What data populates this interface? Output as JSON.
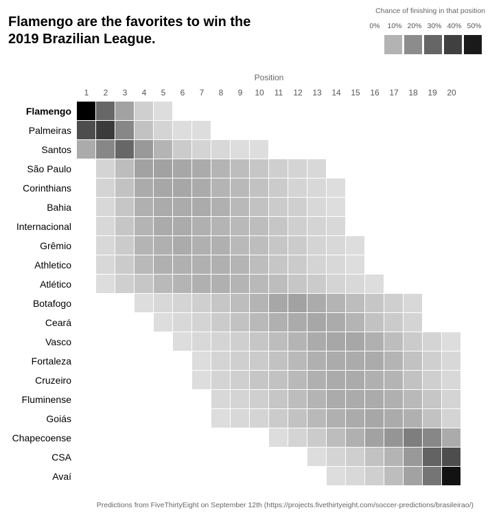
{
  "title": "Flamengo are the favorites to win the 2019 Brazilian League.",
  "legend": {
    "title": "Chance of finishing in that position",
    "labels": [
      "0%",
      "10%",
      "20%",
      "30%",
      "40%",
      "50%"
    ],
    "colors": [
      "#b3b3b3",
      "#8c8c8c",
      "#666666",
      "#404040",
      "#1a1a1a"
    ]
  },
  "footer": "Predictions from FiveThirtyEight on September 12th (https://projects.fivethirtyeight.com/soccer-predictions/brasileirao/)",
  "chart_data": {
    "type": "heatmap",
    "xlabel": "Position",
    "x": [
      "1",
      "2",
      "3",
      "4",
      "5",
      "6",
      "7",
      "8",
      "9",
      "10",
      "11",
      "12",
      "13",
      "14",
      "15",
      "16",
      "17",
      "18",
      "19",
      "20"
    ],
    "y": [
      "Flamengo",
      "Palmeiras",
      "Santos",
      "São Paulo",
      "Corinthians",
      "Bahia",
      "Internacional",
      "Grêmio",
      "Athletico",
      "Atlético",
      "Botafogo",
      "Ceará",
      "Vasco",
      "Fortaleza",
      "Cruzeiro",
      "Fluminense",
      "Goiás",
      "Chapecoense",
      "CSA",
      "Avaí"
    ],
    "highlighted_team": "Flamengo",
    "value_unit": "chance of finishing in that position (%)",
    "scale": [
      0,
      50
    ],
    "values": [
      [
        55,
        27,
        14,
        4,
        1,
        0,
        0,
        0,
        0,
        0,
        0,
        0,
        0,
        0,
        0,
        0,
        0,
        0,
        0,
        0
      ],
      [
        33,
        37,
        20,
        7,
        3,
        1,
        1,
        0,
        0,
        0,
        0,
        0,
        0,
        0,
        0,
        0,
        0,
        0,
        0,
        0
      ],
      [
        12,
        20,
        27,
        16,
        10,
        5,
        3,
        2,
        1,
        1,
        0,
        0,
        0,
        0,
        0,
        0,
        0,
        0,
        0,
        0
      ],
      [
        0,
        3,
        8,
        14,
        14,
        13,
        12,
        10,
        8,
        6,
        4,
        3,
        2,
        0,
        0,
        0,
        0,
        0,
        0,
        0
      ],
      [
        0,
        3,
        7,
        12,
        13,
        13,
        12,
        10,
        9,
        7,
        5,
        3,
        2,
        1,
        0,
        0,
        0,
        0,
        0,
        0
      ],
      [
        0,
        2,
        6,
        11,
        12,
        12,
        12,
        11,
        9,
        7,
        5,
        4,
        2,
        1,
        0,
        0,
        0,
        0,
        0,
        0
      ],
      [
        0,
        2,
        6,
        10,
        12,
        12,
        11,
        10,
        9,
        8,
        6,
        4,
        3,
        2,
        0,
        0,
        0,
        0,
        0,
        0
      ],
      [
        0,
        2,
        5,
        10,
        11,
        12,
        11,
        11,
        9,
        8,
        6,
        5,
        3,
        2,
        1,
        0,
        0,
        0,
        0,
        0
      ],
      [
        0,
        2,
        5,
        9,
        11,
        11,
        11,
        11,
        10,
        8,
        6,
        5,
        3,
        2,
        1,
        0,
        0,
        0,
        0,
        0
      ],
      [
        0,
        1,
        4,
        6,
        9,
        10,
        11,
        11,
        10,
        9,
        8,
        6,
        5,
        3,
        2,
        1,
        0,
        0,
        0,
        0
      ],
      [
        0,
        0,
        0,
        1,
        2,
        3,
        4,
        6,
        8,
        10,
        13,
        14,
        12,
        10,
        8,
        6,
        4,
        2,
        0,
        0
      ],
      [
        0,
        0,
        0,
        0,
        1,
        2,
        3,
        5,
        7,
        9,
        11,
        12,
        13,
        12,
        10,
        7,
        5,
        3,
        0,
        0
      ],
      [
        0,
        0,
        0,
        0,
        0,
        1,
        2,
        3,
        4,
        6,
        8,
        10,
        12,
        13,
        13,
        11,
        8,
        5,
        3,
        1
      ],
      [
        0,
        0,
        0,
        0,
        0,
        0,
        1,
        3,
        4,
        5,
        7,
        9,
        11,
        12,
        12,
        12,
        10,
        7,
        4,
        2
      ],
      [
        0,
        0,
        0,
        0,
        0,
        0,
        1,
        3,
        4,
        6,
        7,
        9,
        11,
        12,
        12,
        11,
        10,
        7,
        4,
        2
      ],
      [
        0,
        0,
        0,
        0,
        0,
        0,
        0,
        2,
        3,
        4,
        6,
        8,
        10,
        12,
        12,
        12,
        11,
        9,
        6,
        3
      ],
      [
        0,
        0,
        0,
        0,
        0,
        0,
        0,
        1,
        2,
        3,
        5,
        7,
        9,
        11,
        12,
        13,
        12,
        11,
        7,
        3
      ],
      [
        0,
        0,
        0,
        0,
        0,
        0,
        0,
        0,
        0,
        0,
        1,
        3,
        5,
        8,
        11,
        14,
        17,
        22,
        20,
        12
      ],
      [
        0,
        0,
        0,
        0,
        0,
        0,
        0,
        0,
        0,
        0,
        0,
        0,
        1,
        3,
        4,
        7,
        10,
        16,
        28,
        33
      ],
      [
        0,
        0,
        0,
        0,
        0,
        0,
        0,
        0,
        0,
        0,
        0,
        0,
        0,
        1,
        2,
        4,
        8,
        14,
        24,
        46
      ]
    ]
  }
}
